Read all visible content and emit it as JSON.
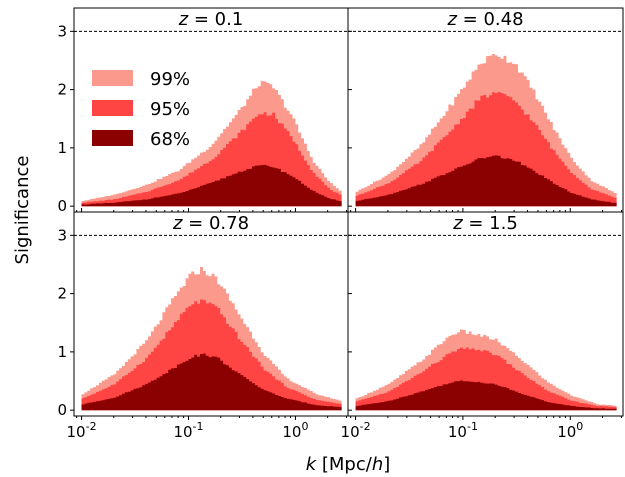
{
  "figure": {
    "xlabel": "k [Mpc/h]",
    "ylabel": "Significance",
    "colors": {
      "band_99": "#fb9a8c",
      "band_95": "#ff4444",
      "band_68": "#8b0000",
      "frame": "#000000",
      "threshold": "#000000"
    },
    "legend": {
      "placement": "upper-left of top-left panel",
      "entries": [
        {
          "label": "99%",
          "color": "#fb9a8c"
        },
        {
          "label": "95%",
          "color": "#ff4444"
        },
        {
          "label": "68%",
          "color": "#8b0000"
        }
      ]
    },
    "threshold_line": {
      "y": 3,
      "style": "dashed"
    }
  },
  "chart_data": [
    {
      "type": "area",
      "panel": "top-left",
      "title": "z = 0.1",
      "xscale": "log",
      "xlim": [
        0.0085,
        3.1
      ],
      "ylim": [
        -0.1,
        3.4
      ],
      "x_ticks": [
        0.01,
        0.1,
        1.0
      ],
      "x_tick_labels": [
        "10^-2",
        "10^-1",
        "10^0"
      ],
      "y_ticks": [
        0,
        1,
        2,
        3
      ],
      "y_tick_labels": [
        "0",
        "1",
        "2",
        "3"
      ],
      "series": [
        {
          "name": "99%",
          "x": [
            0.01,
            0.02,
            0.04,
            0.08,
            0.16,
            0.3,
            0.45,
            0.6,
            0.9,
            1.4,
            2.0,
            2.7
          ],
          "values": [
            0.09,
            0.2,
            0.37,
            0.62,
            1.05,
            1.66,
            2.12,
            2.05,
            1.55,
            0.8,
            0.42,
            0.23
          ]
        },
        {
          "name": "95%",
          "x": [
            0.01,
            0.02,
            0.04,
            0.08,
            0.16,
            0.3,
            0.45,
            0.6,
            0.9,
            1.4,
            2.0,
            2.7
          ],
          "values": [
            0.06,
            0.12,
            0.25,
            0.45,
            0.8,
            1.27,
            1.6,
            1.58,
            1.18,
            0.6,
            0.3,
            0.17
          ]
        },
        {
          "name": "68%",
          "x": [
            0.01,
            0.02,
            0.04,
            0.08,
            0.16,
            0.3,
            0.45,
            0.6,
            0.9,
            1.4,
            2.0,
            2.7
          ],
          "values": [
            0.03,
            0.06,
            0.12,
            0.22,
            0.4,
            0.6,
            0.7,
            0.68,
            0.52,
            0.27,
            0.13,
            0.08
          ]
        }
      ]
    },
    {
      "type": "area",
      "panel": "top-right",
      "title": "z = 0.48",
      "xscale": "log",
      "xlim": [
        0.0085,
        3.1
      ],
      "ylim": [
        -0.1,
        3.4
      ],
      "x_ticks": [
        0.01,
        0.1,
        1.0
      ],
      "x_tick_labels": [
        "10^-2",
        "10^-1",
        "10^0"
      ],
      "y_ticks": [
        0,
        1,
        2,
        3
      ],
      "y_tick_labels": [
        "0",
        "1",
        "2",
        "3"
      ],
      "series": [
        {
          "name": "99%",
          "x": [
            0.01,
            0.02,
            0.04,
            0.08,
            0.14,
            0.2,
            0.3,
            0.45,
            0.7,
            1.0,
            1.5,
            2.7
          ],
          "values": [
            0.25,
            0.55,
            1.05,
            1.8,
            2.45,
            2.62,
            2.45,
            1.95,
            1.3,
            0.82,
            0.45,
            0.2
          ]
        },
        {
          "name": "95%",
          "x": [
            0.01,
            0.02,
            0.04,
            0.08,
            0.14,
            0.2,
            0.3,
            0.45,
            0.7,
            1.0,
            1.5,
            2.7
          ],
          "values": [
            0.18,
            0.4,
            0.78,
            1.35,
            1.85,
            1.95,
            1.8,
            1.42,
            0.92,
            0.58,
            0.3,
            0.13
          ]
        },
        {
          "name": "68%",
          "x": [
            0.01,
            0.02,
            0.04,
            0.08,
            0.14,
            0.2,
            0.3,
            0.45,
            0.7,
            1.0,
            1.5,
            2.7
          ],
          "values": [
            0.09,
            0.2,
            0.38,
            0.62,
            0.82,
            0.86,
            0.78,
            0.6,
            0.38,
            0.23,
            0.12,
            0.05
          ]
        }
      ]
    },
    {
      "type": "area",
      "panel": "bottom-left",
      "title": "z = 0.78",
      "xscale": "log",
      "xlim": [
        0.0085,
        3.1
      ],
      "ylim": [
        -0.1,
        3.4
      ],
      "x_ticks": [
        0.01,
        0.1,
        1.0
      ],
      "x_tick_labels": [
        "10^-2",
        "10^-1",
        "10^0"
      ],
      "y_ticks": [
        0,
        1,
        2,
        3
      ],
      "y_tick_labels": [
        "0",
        "1",
        "2",
        "3"
      ],
      "series": [
        {
          "name": "99%",
          "x": [
            0.01,
            0.02,
            0.04,
            0.07,
            0.1,
            0.13,
            0.18,
            0.3,
            0.5,
            0.8,
            1.5,
            2.7
          ],
          "values": [
            0.28,
            0.62,
            1.2,
            1.9,
            2.3,
            2.42,
            2.25,
            1.6,
            0.95,
            0.55,
            0.28,
            0.15
          ]
        },
        {
          "name": "95%",
          "x": [
            0.01,
            0.02,
            0.04,
            0.07,
            0.1,
            0.13,
            0.18,
            0.3,
            0.5,
            0.8,
            1.5,
            2.7
          ],
          "values": [
            0.2,
            0.45,
            0.9,
            1.45,
            1.8,
            1.88,
            1.75,
            1.2,
            0.7,
            0.4,
            0.18,
            0.1
          ]
        },
        {
          "name": "68%",
          "x": [
            0.01,
            0.02,
            0.04,
            0.07,
            0.1,
            0.13,
            0.18,
            0.3,
            0.5,
            0.8,
            1.5,
            2.7
          ],
          "values": [
            0.1,
            0.22,
            0.45,
            0.72,
            0.9,
            0.96,
            0.9,
            0.6,
            0.34,
            0.2,
            0.09,
            0.05
          ]
        }
      ]
    },
    {
      "type": "area",
      "panel": "bottom-right",
      "title": "z = 1.5",
      "xscale": "log",
      "xlim": [
        0.0085,
        3.1
      ],
      "ylim": [
        -0.1,
        3.4
      ],
      "x_ticks": [
        0.01,
        0.1,
        1.0
      ],
      "x_tick_labels": [
        "10^-2",
        "10^-1",
        "10^0"
      ],
      "y_ticks": [
        0,
        1,
        2,
        3
      ],
      "y_tick_labels": [
        "0",
        "1",
        "2",
        "3"
      ],
      "series": [
        {
          "name": "99%",
          "x": [
            0.01,
            0.02,
            0.04,
            0.07,
            0.09,
            0.13,
            0.2,
            0.35,
            0.6,
            1.0,
            1.8,
            2.7
          ],
          "values": [
            0.2,
            0.45,
            0.85,
            1.25,
            1.36,
            1.3,
            1.2,
            0.85,
            0.48,
            0.25,
            0.1,
            0.07
          ]
        },
        {
          "name": "95%",
          "x": [
            0.01,
            0.02,
            0.04,
            0.07,
            0.09,
            0.13,
            0.2,
            0.35,
            0.6,
            1.0,
            1.8,
            2.7
          ],
          "values": [
            0.15,
            0.32,
            0.65,
            0.95,
            1.05,
            1.05,
            0.95,
            0.62,
            0.33,
            0.16,
            0.07,
            0.05
          ]
        },
        {
          "name": "68%",
          "x": [
            0.01,
            0.02,
            0.04,
            0.07,
            0.09,
            0.13,
            0.2,
            0.35,
            0.6,
            1.0,
            1.8,
            2.7
          ],
          "values": [
            0.07,
            0.16,
            0.32,
            0.46,
            0.5,
            0.49,
            0.44,
            0.28,
            0.14,
            0.07,
            0.03,
            0.02
          ]
        }
      ]
    }
  ]
}
